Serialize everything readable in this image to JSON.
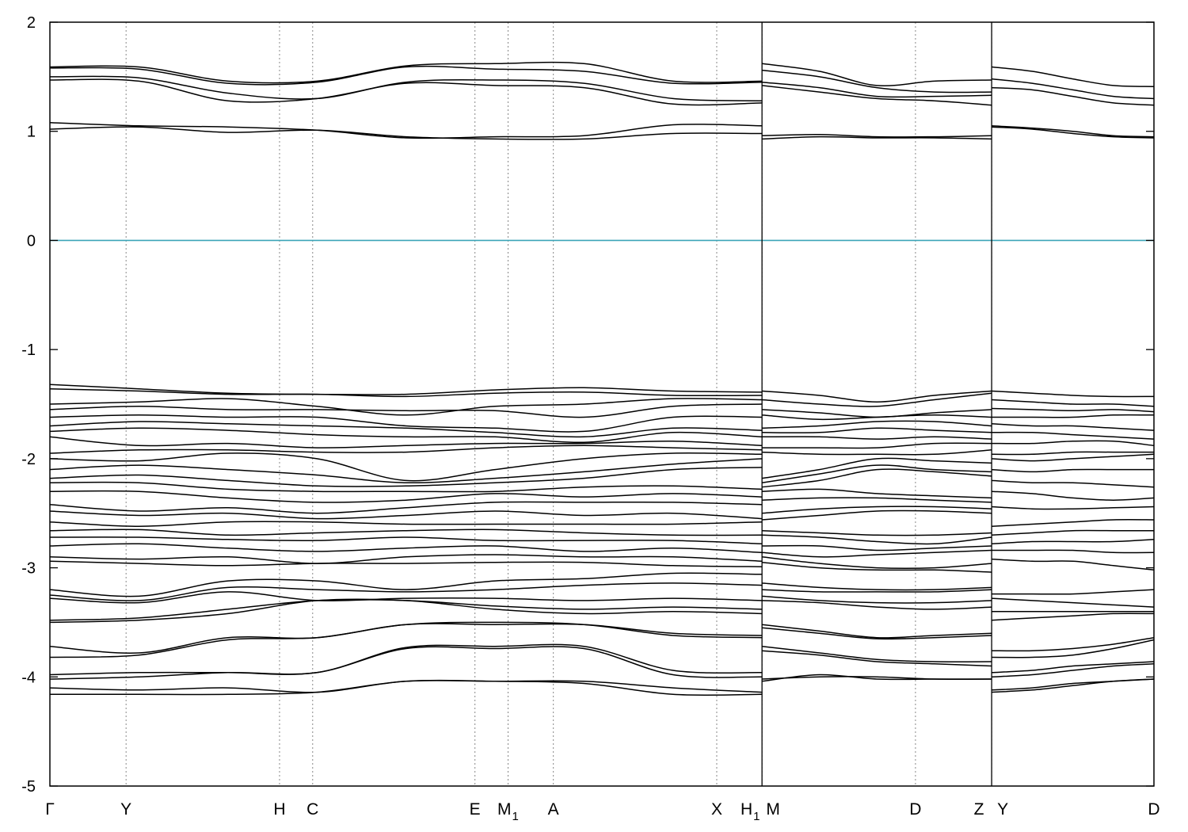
{
  "chart_data": {
    "type": "line",
    "title": "",
    "xlabel": "",
    "ylabel": "",
    "ylim": [
      -5,
      2
    ],
    "yticks": [
      2,
      1,
      0,
      -1,
      -2,
      -3,
      -4,
      -5
    ],
    "ytick_labels": [
      "2",
      "1",
      "0",
      "-1",
      "-2",
      "-3",
      "-4",
      "-5"
    ],
    "grid": "dotted vertical lines at high-symmetry points",
    "zero_line_color": "#3ca5b8",
    "band_color": "#000000",
    "kpath": [
      {
        "label": "Γ",
        "sub": "",
        "x": 0.0
      },
      {
        "label": "Y",
        "sub": "",
        "x": 0.069
      },
      {
        "label": "H",
        "sub": "",
        "x": 0.208
      },
      {
        "label": "C",
        "sub": "",
        "x": 0.238
      },
      {
        "label": "E",
        "sub": "",
        "x": 0.385
      },
      {
        "label": "M",
        "sub": "1",
        "x": 0.415
      },
      {
        "label": "A",
        "sub": "",
        "x": 0.456
      },
      {
        "label": "X",
        "sub": "",
        "x": 0.604
      },
      {
        "label": "H",
        "sub": "1",
        "x": 0.645
      },
      {
        "label": "M",
        "sub": "",
        "x": 0.645
      },
      {
        "label": "D",
        "sub": "",
        "x": 0.784
      },
      {
        "label": "Z",
        "sub": "",
        "x": 0.853
      },
      {
        "label": "Y",
        "sub": "",
        "x": 0.853
      },
      {
        "label": "D",
        "sub": "",
        "x": 1.0
      }
    ],
    "discontinuities": [
      0.645,
      0.853
    ],
    "segments": [
      {
        "x0": 0.0,
        "x1": 0.645,
        "conduction": [
          [
            1.59,
            1.59,
            1.46,
            1.46,
            1.6,
            1.62,
            1.62,
            1.46,
            1.46
          ],
          [
            1.58,
            1.57,
            1.44,
            1.45,
            1.59,
            1.57,
            1.55,
            1.44,
            1.45
          ],
          [
            1.5,
            1.49,
            1.35,
            1.3,
            1.45,
            1.47,
            1.44,
            1.3,
            1.28
          ],
          [
            1.47,
            1.46,
            1.28,
            1.3,
            1.44,
            1.42,
            1.4,
            1.25,
            1.26
          ],
          [
            1.08,
            1.05,
            1.04,
            1.01,
            0.94,
            0.95,
            0.96,
            1.06,
            1.05
          ],
          [
            1.02,
            1.04,
            0.99,
            1.01,
            0.95,
            0.93,
            0.93,
            0.98,
            0.98
          ]
        ],
        "valence": [
          [
            -1.32,
            -1.36,
            -1.4,
            -1.41,
            -1.41,
            -1.37,
            -1.35,
            -1.38,
            -1.39
          ],
          [
            -1.36,
            -1.38,
            -1.41,
            -1.41,
            -1.43,
            -1.4,
            -1.39,
            -1.42,
            -1.42
          ],
          [
            -1.5,
            -1.48,
            -1.45,
            -1.52,
            -1.6,
            -1.52,
            -1.5,
            -1.45,
            -1.46
          ],
          [
            -1.55,
            -1.52,
            -1.55,
            -1.55,
            -1.56,
            -1.56,
            -1.62,
            -1.52,
            -1.5
          ],
          [
            -1.62,
            -1.6,
            -1.62,
            -1.62,
            -1.7,
            -1.72,
            -1.75,
            -1.62,
            -1.62
          ],
          [
            -1.7,
            -1.66,
            -1.68,
            -1.7,
            -1.72,
            -1.76,
            -1.8,
            -1.72,
            -1.74
          ],
          [
            -1.75,
            -1.72,
            -1.74,
            -1.78,
            -1.8,
            -1.8,
            -1.85,
            -1.76,
            -1.8
          ],
          [
            -1.8,
            -1.88,
            -1.86,
            -1.9,
            -1.88,
            -1.86,
            -1.86,
            -1.84,
            -1.88
          ],
          [
            -1.95,
            -1.92,
            -1.92,
            -1.94,
            -1.94,
            -1.9,
            -1.88,
            -1.9,
            -1.92
          ],
          [
            -2.0,
            -2.02,
            -1.95,
            -2.0,
            -2.2,
            -2.1,
            -2.0,
            -1.95,
            -1.96
          ],
          [
            -2.1,
            -2.06,
            -2.1,
            -2.15,
            -2.22,
            -2.18,
            -2.12,
            -2.05,
            -2.0
          ],
          [
            -2.18,
            -2.15,
            -2.2,
            -2.25,
            -2.25,
            -2.22,
            -2.18,
            -2.1,
            -2.08
          ],
          [
            -2.22,
            -2.22,
            -2.28,
            -2.3,
            -2.3,
            -2.3,
            -2.26,
            -2.25,
            -2.28
          ],
          [
            -2.3,
            -2.3,
            -2.36,
            -2.4,
            -2.38,
            -2.32,
            -2.35,
            -2.32,
            -2.35
          ],
          [
            -2.42,
            -2.48,
            -2.45,
            -2.5,
            -2.45,
            -2.4,
            -2.4,
            -2.4,
            -2.42
          ],
          [
            -2.48,
            -2.52,
            -2.5,
            -2.55,
            -2.52,
            -2.48,
            -2.52,
            -2.5,
            -2.55
          ],
          [
            -2.58,
            -2.62,
            -2.58,
            -2.58,
            -2.6,
            -2.6,
            -2.6,
            -2.6,
            -2.58
          ],
          [
            -2.66,
            -2.65,
            -2.7,
            -2.68,
            -2.66,
            -2.65,
            -2.68,
            -2.7,
            -2.7
          ],
          [
            -2.72,
            -2.72,
            -2.74,
            -2.75,
            -2.72,
            -2.75,
            -2.75,
            -2.75,
            -2.78
          ],
          [
            -2.8,
            -2.78,
            -2.82,
            -2.85,
            -2.82,
            -2.8,
            -2.85,
            -2.82,
            -2.86
          ],
          [
            -2.9,
            -2.92,
            -2.9,
            -2.96,
            -2.9,
            -2.88,
            -2.9,
            -2.9,
            -2.94
          ],
          [
            -2.94,
            -2.96,
            -2.98,
            -2.96,
            -2.96,
            -2.95,
            -2.95,
            -2.98,
            -2.99
          ],
          [
            -3.2,
            -3.26,
            -3.12,
            -3.12,
            -3.2,
            -3.12,
            -3.1,
            -3.05,
            -3.06
          ],
          [
            -3.25,
            -3.3,
            -3.18,
            -3.2,
            -3.22,
            -3.2,
            -3.16,
            -3.14,
            -3.16
          ],
          [
            -3.28,
            -3.32,
            -3.22,
            -3.3,
            -3.28,
            -3.28,
            -3.3,
            -3.28,
            -3.3
          ],
          [
            -3.48,
            -3.46,
            -3.38,
            -3.3,
            -3.3,
            -3.35,
            -3.38,
            -3.36,
            -3.38
          ],
          [
            -3.5,
            -3.48,
            -3.42,
            -3.3,
            -3.3,
            -3.38,
            -3.42,
            -3.4,
            -3.42
          ],
          [
            -3.72,
            -3.78,
            -3.64,
            -3.64,
            -3.52,
            -3.52,
            -3.52,
            -3.6,
            -3.62
          ],
          [
            -3.82,
            -3.8,
            -3.66,
            -3.64,
            -3.52,
            -3.5,
            -3.52,
            -3.62,
            -3.64
          ],
          [
            -3.98,
            -3.96,
            -3.96,
            -3.96,
            -3.73,
            -3.72,
            -3.72,
            -3.94,
            -3.96
          ],
          [
            -4.02,
            -4.0,
            -3.96,
            -3.96,
            -3.74,
            -3.74,
            -3.74,
            -3.98,
            -4.0
          ],
          [
            -4.1,
            -4.12,
            -4.1,
            -4.14,
            -4.04,
            -4.04,
            -4.04,
            -4.1,
            -4.14
          ],
          [
            -4.16,
            -4.16,
            -4.16,
            -4.14,
            -4.04,
            -4.04,
            -4.06,
            -4.16,
            -4.16
          ]
        ]
      },
      {
        "x0": 0.645,
        "x1": 0.853,
        "conduction": [
          [
            1.62,
            1.55,
            1.42,
            1.46,
            1.47
          ],
          [
            1.56,
            1.5,
            1.4,
            1.36,
            1.36
          ],
          [
            1.45,
            1.4,
            1.32,
            1.32,
            1.33
          ],
          [
            1.42,
            1.36,
            1.3,
            1.28,
            1.24
          ],
          [
            0.96,
            0.97,
            0.95,
            0.95,
            0.96
          ],
          [
            0.93,
            0.95,
            0.94,
            0.94,
            0.93
          ]
        ],
        "valence": [
          [
            -1.38,
            -1.42,
            -1.48,
            -1.42,
            -1.38
          ],
          [
            -1.46,
            -1.5,
            -1.52,
            -1.46,
            -1.4
          ],
          [
            -1.55,
            -1.58,
            -1.62,
            -1.58,
            -1.55
          ],
          [
            -1.6,
            -1.64,
            -1.62,
            -1.6,
            -1.62
          ],
          [
            -1.72,
            -1.7,
            -1.66,
            -1.66,
            -1.7
          ],
          [
            -1.76,
            -1.76,
            -1.72,
            -1.74,
            -1.76
          ],
          [
            -1.8,
            -1.8,
            -1.82,
            -1.8,
            -1.82
          ],
          [
            -1.9,
            -1.9,
            -1.9,
            -1.86,
            -1.86
          ],
          [
            -1.94,
            -1.96,
            -1.96,
            -1.96,
            -1.92
          ],
          [
            -2.18,
            -2.1,
            -2.0,
            -2.02,
            -2.04
          ],
          [
            -2.22,
            -2.14,
            -2.06,
            -2.1,
            -2.12
          ],
          [
            -2.26,
            -2.2,
            -2.1,
            -2.12,
            -2.16
          ],
          [
            -2.3,
            -2.28,
            -2.32,
            -2.34,
            -2.36
          ],
          [
            -2.38,
            -2.36,
            -2.36,
            -2.38,
            -2.4
          ],
          [
            -2.5,
            -2.46,
            -2.44,
            -2.44,
            -2.46
          ],
          [
            -2.56,
            -2.52,
            -2.48,
            -2.48,
            -2.5
          ],
          [
            -2.66,
            -2.68,
            -2.7,
            -2.7,
            -2.68
          ],
          [
            -2.7,
            -2.72,
            -2.76,
            -2.78,
            -2.72
          ],
          [
            -2.8,
            -2.8,
            -2.84,
            -2.82,
            -2.8
          ],
          [
            -2.86,
            -2.9,
            -2.88,
            -2.86,
            -2.84
          ],
          [
            -2.9,
            -2.96,
            -3.0,
            -3.0,
            -2.96
          ],
          [
            -2.95,
            -3.0,
            -3.02,
            -3.02,
            -3.04
          ],
          [
            -3.14,
            -3.18,
            -3.2,
            -3.2,
            -3.18
          ],
          [
            -3.2,
            -3.22,
            -3.22,
            -3.22,
            -3.2
          ],
          [
            -3.26,
            -3.3,
            -3.32,
            -3.32,
            -3.3
          ],
          [
            -3.3,
            -3.32,
            -3.36,
            -3.38,
            -3.36
          ],
          [
            -3.52,
            -3.58,
            -3.64,
            -3.62,
            -3.6
          ],
          [
            -3.55,
            -3.6,
            -3.65,
            -3.64,
            -3.62
          ],
          [
            -3.72,
            -3.78,
            -3.84,
            -3.86,
            -3.86
          ],
          [
            -3.76,
            -3.8,
            -3.86,
            -3.88,
            -3.9
          ],
          [
            -4.02,
            -4.0,
            -4.0,
            -4.02,
            -4.02
          ],
          [
            -4.04,
            -3.98,
            -4.02,
            -4.02,
            -4.02
          ]
        ]
      },
      {
        "x0": 0.853,
        "x1": 1.0,
        "conduction": [
          [
            1.59,
            1.55,
            1.48,
            1.42,
            1.41
          ],
          [
            1.48,
            1.44,
            1.38,
            1.32,
            1.3
          ],
          [
            1.4,
            1.38,
            1.32,
            1.26,
            1.24
          ],
          [
            1.05,
            1.03,
            1.0,
            0.96,
            0.95
          ],
          [
            1.04,
            1.02,
            0.98,
            0.95,
            0.94
          ]
        ],
        "valence": [
          [
            -1.38,
            -1.4,
            -1.42,
            -1.43,
            -1.43
          ],
          [
            -1.46,
            -1.48,
            -1.5,
            -1.5,
            -1.52
          ],
          [
            -1.54,
            -1.55,
            -1.56,
            -1.55,
            -1.57
          ],
          [
            -1.62,
            -1.62,
            -1.62,
            -1.6,
            -1.6
          ],
          [
            -1.68,
            -1.7,
            -1.7,
            -1.72,
            -1.74
          ],
          [
            -1.76,
            -1.76,
            -1.78,
            -1.8,
            -1.82
          ],
          [
            -1.86,
            -1.86,
            -1.84,
            -1.84,
            -1.88
          ],
          [
            -1.96,
            -1.96,
            -1.94,
            -1.94,
            -1.94
          ],
          [
            -2.0,
            -2.02,
            -2.0,
            -1.98,
            -1.96
          ],
          [
            -2.1,
            -2.12,
            -2.1,
            -2.1,
            -2.1
          ],
          [
            -2.2,
            -2.22,
            -2.22,
            -2.24,
            -2.26
          ],
          [
            -2.3,
            -2.32,
            -2.36,
            -2.38,
            -2.36
          ],
          [
            -2.44,
            -2.46,
            -2.46,
            -2.45,
            -2.44
          ],
          [
            -2.62,
            -2.6,
            -2.58,
            -2.56,
            -2.56
          ],
          [
            -2.7,
            -2.68,
            -2.66,
            -2.66,
            -2.66
          ],
          [
            -2.78,
            -2.76,
            -2.76,
            -2.76,
            -2.74
          ],
          [
            -2.84,
            -2.84,
            -2.84,
            -2.86,
            -2.86
          ],
          [
            -2.92,
            -2.94,
            -2.94,
            -2.98,
            -3.02
          ],
          [
            -3.24,
            -3.24,
            -3.24,
            -3.22,
            -3.2
          ],
          [
            -3.28,
            -3.3,
            -3.32,
            -3.34,
            -3.36
          ],
          [
            -3.4,
            -3.4,
            -3.4,
            -3.4,
            -3.4
          ],
          [
            -3.48,
            -3.46,
            -3.44,
            -3.42,
            -3.42
          ],
          [
            -3.76,
            -3.76,
            -3.74,
            -3.7,
            -3.64
          ],
          [
            -3.82,
            -3.82,
            -3.8,
            -3.74,
            -3.66
          ],
          [
            -3.96,
            -3.94,
            -3.9,
            -3.88,
            -3.86
          ],
          [
            -4.0,
            -3.98,
            -3.94,
            -3.9,
            -3.88
          ],
          [
            -4.12,
            -4.1,
            -4.06,
            -4.04,
            -4.02
          ],
          [
            -4.14,
            -4.12,
            -4.08,
            -4.04,
            -4.02
          ]
        ]
      }
    ]
  }
}
